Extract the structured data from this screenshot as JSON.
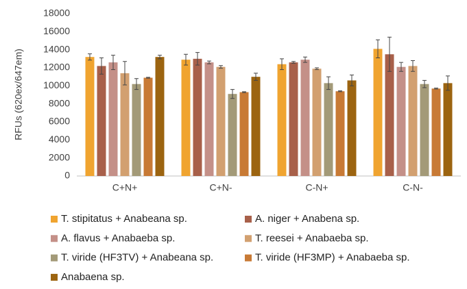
{
  "chart_data": {
    "type": "bar",
    "y_label": "RFUs (620ex/647em)",
    "categories": [
      "C+N+",
      "C+N-",
      "C-N+",
      "C-N-"
    ],
    "ylim": [
      0,
      18000
    ],
    "yticks": [
      0,
      2000,
      4000,
      6000,
      8000,
      10000,
      12000,
      14000,
      16000,
      18000
    ],
    "grid": false,
    "legend": "bottom",
    "series": [
      {
        "name": "T. stipitatus + Anabeana sp.",
        "color": "#f0a430",
        "values": [
          13200,
          12900,
          12400,
          14100
        ],
        "errors": [
          350,
          600,
          600,
          1000
        ]
      },
      {
        "name": "A. niger + Anabena sp.",
        "color": "#a8604a",
        "values": [
          12200,
          13000,
          12600,
          13500
        ],
        "errors": [
          900,
          700,
          100,
          1900
        ]
      },
      {
        "name": "A. flavus + Anabaeba sp.",
        "color": "#c49088",
        "values": [
          12600,
          12600,
          12900,
          12100
        ],
        "errors": [
          800,
          150,
          300,
          500
        ]
      },
      {
        "name": "T. reesei + Anabaeba sp.",
        "color": "#d2a070",
        "values": [
          11400,
          12100,
          11900,
          12200
        ],
        "errors": [
          1300,
          150,
          100,
          600
        ]
      },
      {
        "name": "T. viride (HF3TV) + Anabeana sp.",
        "color": "#a39a78",
        "values": [
          10200,
          9100,
          10300,
          10200
        ],
        "errors": [
          600,
          500,
          700,
          400
        ]
      },
      {
        "name": "T. viride (HF3MP) + Anabaeba sp.",
        "color": "#c87a35",
        "values": [
          10900,
          9300,
          9400,
          9700
        ],
        "errors": [
          50,
          50,
          50,
          50
        ]
      },
      {
        "name": "Anabaena sp.",
        "color": "#9c6410",
        "values": [
          13200,
          11000,
          10600,
          10300
        ],
        "errors": [
          200,
          400,
          600,
          800
        ]
      }
    ]
  }
}
